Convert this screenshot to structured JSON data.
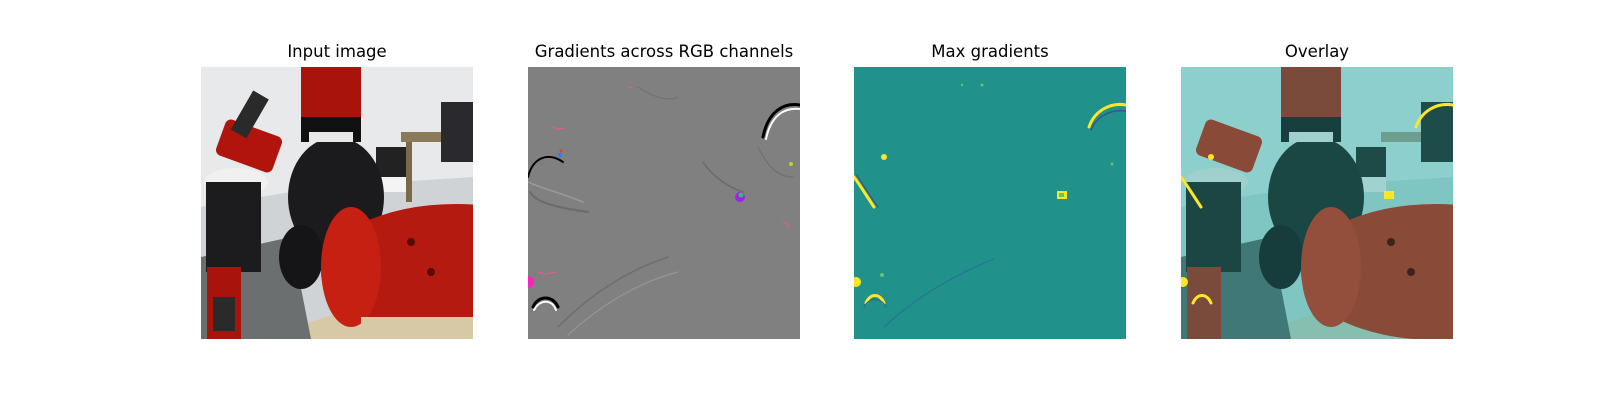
{
  "figure": {
    "panels": [
      {
        "title": "Input image",
        "content": "robot-arm-photo"
      },
      {
        "title": "Gradients across RGB channels",
        "content": "rgb-gradient-map"
      },
      {
        "title": "Max gradients",
        "content": "max-gradient-heatmap"
      },
      {
        "title": "Overlay",
        "content": "heatmap-overlay"
      }
    ]
  },
  "colors": {
    "gradient_gray": "#808080",
    "heatmap_teal": "#21918c",
    "heatmap_yellow": "#fde725",
    "robot_red": "#b0140c"
  }
}
